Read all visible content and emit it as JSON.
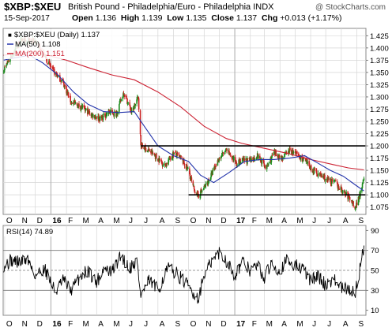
{
  "header": {
    "symbol": "$XBP:$XEU",
    "description": "British Pound - Philadelphia/Euro - Philadelphia INDX",
    "provider": "@ StockCharts.com",
    "date": "15-Sep-2017",
    "open_label": "Open",
    "open": "1.136",
    "high_label": "High",
    "high": "1.139",
    "low_label": "Low",
    "low": "1.135",
    "close_label": "Close",
    "close": "1.137",
    "chg_label": "Chg",
    "chg": "+0.013 (+1.17%)"
  },
  "colors": {
    "up": "#1a8a1a",
    "down": "#cc2222",
    "ma50": "#2233aa",
    "ma200": "#cc2233",
    "rsi": "#000000",
    "grid": "#d6d6d6",
    "support_lines": "#000000"
  },
  "chart_data": [
    {
      "type": "candlestick",
      "title": "$XBP:$XEU (Daily) 1.137",
      "legend": [
        {
          "label": "$XBP:$XEU (Daily) 1.137",
          "color": "#000000"
        },
        {
          "label": "MA(50) 1.108",
          "color": "#2233aa"
        },
        {
          "label": "MA(200) 1.151",
          "color": "#cc2233"
        }
      ],
      "legend_placement": "top-left",
      "x_ticks": [
        "O",
        "N",
        "D",
        "16",
        "F",
        "M",
        "A",
        "M",
        "J",
        "J",
        "A",
        "S",
        "O",
        "N",
        "D",
        "17",
        "F",
        "M",
        "A",
        "M",
        "J",
        "J",
        "A",
        "S"
      ],
      "y_ticks": [
        1.075,
        1.1,
        1.125,
        1.15,
        1.175,
        1.2,
        1.225,
        1.25,
        1.275,
        1.3,
        1.325,
        1.35,
        1.375,
        1.4,
        1.425
      ],
      "ylim": [
        1.06,
        1.44
      ],
      "grid": true,
      "price_path": [
        [
          "2015-09-29",
          1.355
        ],
        [
          "2015-10-15",
          1.385
        ],
        [
          "2015-11-05",
          1.42
        ],
        [
          "2015-11-12",
          1.41
        ],
        [
          "2015-12-01",
          1.415
        ],
        [
          "2016-01-04",
          1.355
        ],
        [
          "2016-01-25",
          1.33
        ],
        [
          "2016-02-10",
          1.29
        ],
        [
          "2016-03-01",
          1.28
        ],
        [
          "2016-03-20",
          1.265
        ],
        [
          "2016-04-10",
          1.255
        ],
        [
          "2016-04-25",
          1.27
        ],
        [
          "2016-05-10",
          1.265
        ],
        [
          "2016-05-25",
          1.31
        ],
        [
          "2016-06-10",
          1.268
        ],
        [
          "2016-06-23",
          1.3
        ],
        [
          "2016-06-28",
          1.2
        ],
        [
          "2016-07-15",
          1.19
        ],
        [
          "2016-08-05",
          1.17
        ],
        [
          "2016-08-15",
          1.16
        ],
        [
          "2016-09-01",
          1.185
        ],
        [
          "2016-09-15",
          1.175
        ],
        [
          "2016-10-01",
          1.15
        ],
        [
          "2016-10-10",
          1.115
        ],
        [
          "2016-10-20",
          1.098
        ],
        [
          "2016-11-05",
          1.12
        ],
        [
          "2016-11-20",
          1.15
        ],
        [
          "2016-12-01",
          1.175
        ],
        [
          "2016-12-15",
          1.19
        ],
        [
          "2017-01-05",
          1.165
        ],
        [
          "2017-01-17",
          1.17
        ],
        [
          "2017-02-01",
          1.17
        ],
        [
          "2017-02-15",
          1.18
        ],
        [
          "2017-03-05",
          1.155
        ],
        [
          "2017-03-20",
          1.185
        ],
        [
          "2017-04-05",
          1.175
        ],
        [
          "2017-04-20",
          1.19
        ],
        [
          "2017-05-01",
          1.185
        ],
        [
          "2017-05-20",
          1.17
        ],
        [
          "2017-06-05",
          1.15
        ],
        [
          "2017-06-20",
          1.14
        ],
        [
          "2017-07-05",
          1.13
        ],
        [
          "2017-07-20",
          1.125
        ],
        [
          "2017-08-01",
          1.11
        ],
        [
          "2017-08-20",
          1.09
        ],
        [
          "2017-08-29",
          1.075
        ],
        [
          "2017-09-05",
          1.095
        ],
        [
          "2017-09-15",
          1.137
        ]
      ],
      "ma50": [
        [
          "2015-09-29",
          1.375
        ],
        [
          "2015-10-20",
          1.38
        ],
        [
          "2015-11-20",
          1.385
        ],
        [
          "2015-12-15",
          1.37
        ],
        [
          "2016-01-15",
          1.345
        ],
        [
          "2016-02-15",
          1.31
        ],
        [
          "2016-03-15",
          1.285
        ],
        [
          "2016-04-15",
          1.27
        ],
        [
          "2016-05-15",
          1.268
        ],
        [
          "2016-06-15",
          1.27
        ],
        [
          "2016-07-05",
          1.24
        ],
        [
          "2016-08-01",
          1.2
        ],
        [
          "2016-09-01",
          1.18
        ],
        [
          "2016-10-01",
          1.168
        ],
        [
          "2016-10-25",
          1.14
        ],
        [
          "2016-11-20",
          1.125
        ],
        [
          "2016-12-20",
          1.145
        ],
        [
          "2017-01-20",
          1.168
        ],
        [
          "2017-02-20",
          1.172
        ],
        [
          "2017-03-20",
          1.172
        ],
        [
          "2017-04-20",
          1.175
        ],
        [
          "2017-05-20",
          1.18
        ],
        [
          "2017-06-15",
          1.165
        ],
        [
          "2017-07-10",
          1.15
        ],
        [
          "2017-08-05",
          1.138
        ],
        [
          "2017-09-01",
          1.118
        ],
        [
          "2017-09-15",
          1.108
        ]
      ],
      "ma200": [
        [
          "2015-09-29",
          1.385
        ],
        [
          "2015-11-01",
          1.392
        ],
        [
          "2015-12-15",
          1.388
        ],
        [
          "2016-02-01",
          1.375
        ],
        [
          "2016-03-15",
          1.36
        ],
        [
          "2016-05-01",
          1.345
        ],
        [
          "2016-06-15",
          1.335
        ],
        [
          "2016-08-01",
          1.31
        ],
        [
          "2016-09-15",
          1.28
        ],
        [
          "2016-11-01",
          1.24
        ],
        [
          "2016-12-15",
          1.215
        ],
        [
          "2017-01-15",
          1.205
        ],
        [
          "2017-03-01",
          1.195
        ],
        [
          "2017-04-15",
          1.185
        ],
        [
          "2017-06-01",
          1.172
        ],
        [
          "2017-07-15",
          1.162
        ],
        [
          "2017-08-15",
          1.155
        ],
        [
          "2017-09-15",
          1.151
        ]
      ],
      "horizontal_lines": [
        {
          "y": 1.2,
          "from": "2016-06-28",
          "to": "2017-09-18"
        },
        {
          "y": 1.1,
          "from": "2016-10-01",
          "to": "2017-09-18"
        }
      ]
    },
    {
      "type": "line",
      "title": "RSI(14) 74.89",
      "y_ticks": [
        10,
        30,
        50,
        70,
        90
      ],
      "ylim": [
        5,
        95
      ],
      "reference_lines": [
        30,
        50,
        70
      ],
      "x_ticks": [
        "O",
        "N",
        "D",
        "16",
        "F",
        "M",
        "A",
        "M",
        "J",
        "J",
        "A",
        "S",
        "O",
        "N",
        "D",
        "17",
        "F",
        "M",
        "A",
        "M",
        "J",
        "J",
        "A",
        "S"
      ],
      "grid": true,
      "values": [
        [
          "2015-09-29",
          55
        ],
        [
          "2015-10-15",
          60
        ],
        [
          "2015-11-01",
          58
        ],
        [
          "2015-11-15",
          62
        ],
        [
          "2015-12-01",
          45
        ],
        [
          "2015-12-20",
          52
        ],
        [
          "2016-01-10",
          28
        ],
        [
          "2016-01-25",
          40
        ],
        [
          "2016-02-10",
          30
        ],
        [
          "2016-03-01",
          45
        ],
        [
          "2016-03-15",
          50
        ],
        [
          "2016-04-01",
          38
        ],
        [
          "2016-04-15",
          52
        ],
        [
          "2016-05-01",
          48
        ],
        [
          "2016-05-20",
          65
        ],
        [
          "2016-06-05",
          52
        ],
        [
          "2016-06-20",
          60
        ],
        [
          "2016-06-28",
          25
        ],
        [
          "2016-07-15",
          40
        ],
        [
          "2016-08-01",
          30
        ],
        [
          "2016-08-20",
          52
        ],
        [
          "2016-09-05",
          48
        ],
        [
          "2016-09-20",
          40
        ],
        [
          "2016-10-10",
          28
        ],
        [
          "2016-10-20",
          22
        ],
        [
          "2016-11-01",
          45
        ],
        [
          "2016-11-15",
          58
        ],
        [
          "2016-12-01",
          68
        ],
        [
          "2016-12-15",
          60
        ],
        [
          "2017-01-01",
          45
        ],
        [
          "2017-01-15",
          58
        ],
        [
          "2017-02-01",
          50
        ],
        [
          "2017-02-15",
          55
        ],
        [
          "2017-03-01",
          42
        ],
        [
          "2017-03-15",
          58
        ],
        [
          "2017-04-01",
          50
        ],
        [
          "2017-04-15",
          60
        ],
        [
          "2017-05-01",
          55
        ],
        [
          "2017-05-15",
          52
        ],
        [
          "2017-06-01",
          40
        ],
        [
          "2017-06-15",
          45
        ],
        [
          "2017-07-01",
          35
        ],
        [
          "2017-07-15",
          42
        ],
        [
          "2017-08-01",
          32
        ],
        [
          "2017-08-20",
          30
        ],
        [
          "2017-08-29",
          28
        ],
        [
          "2017-09-05",
          45
        ],
        [
          "2017-09-15",
          74.89
        ]
      ]
    }
  ]
}
